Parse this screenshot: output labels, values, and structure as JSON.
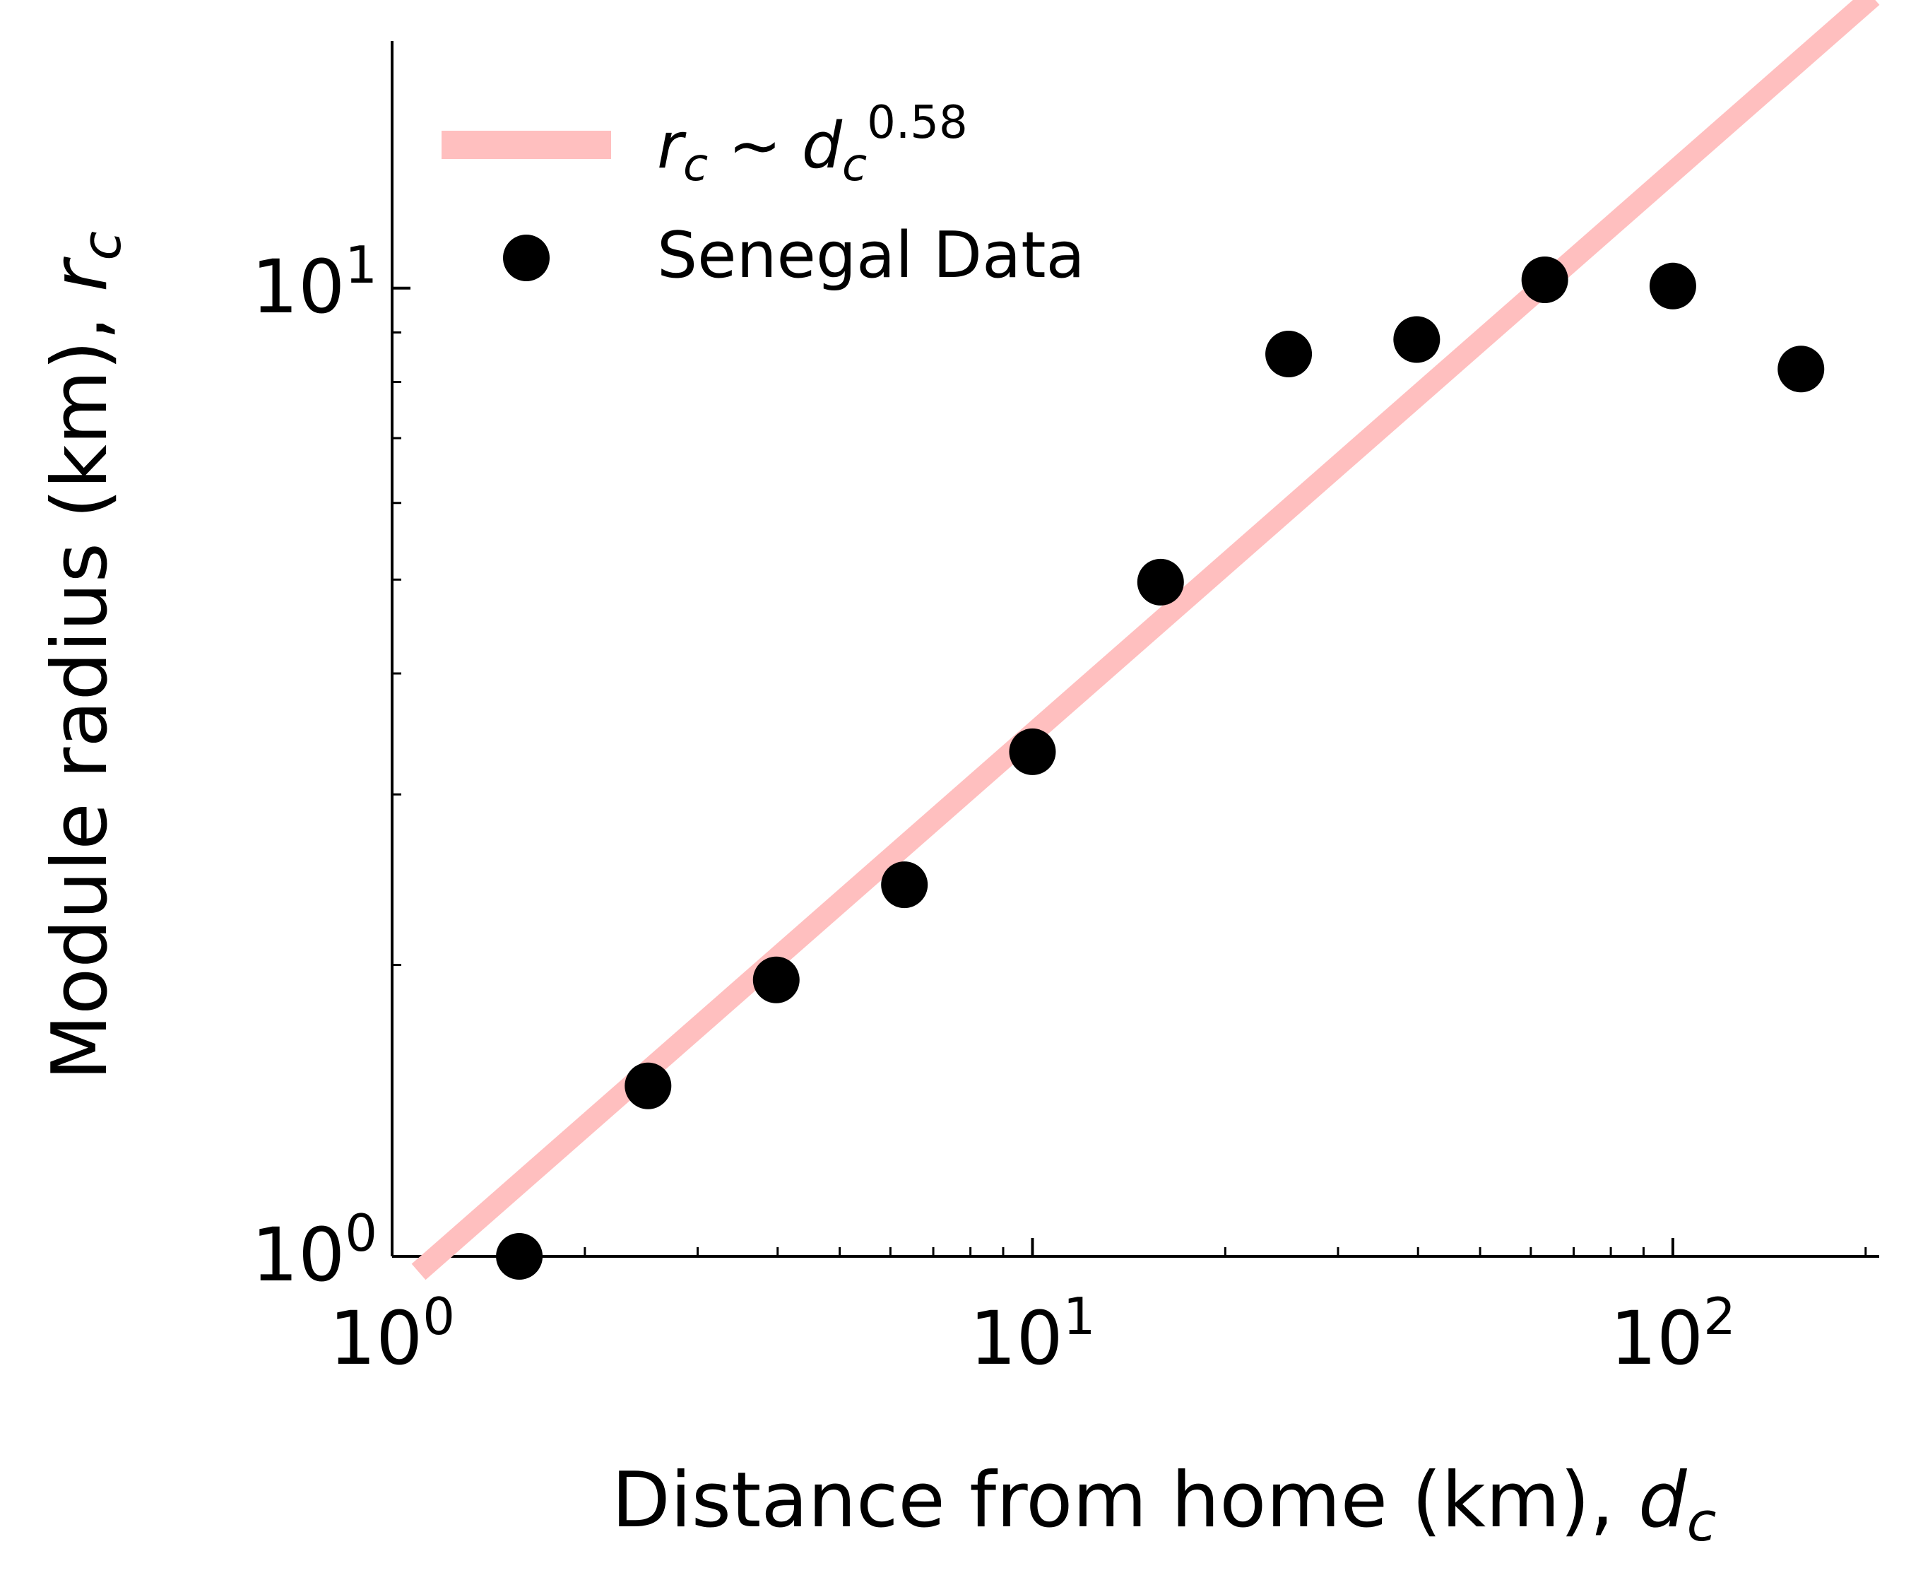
{
  "chart_data": {
    "type": "scatter",
    "xscale": "log",
    "yscale": "log",
    "xlim": [
      1,
      210
    ],
    "ylim": [
      1,
      18
    ],
    "xlabel": {
      "text": "Distance from home (km), ",
      "var": "d",
      "sub": "c"
    },
    "ylabel": {
      "text": "Module radius (km), ",
      "var": "r",
      "sub": "c"
    },
    "x_ticks": [
      {
        "value": 1,
        "base": "10",
        "exp": "0"
      },
      {
        "value": 10,
        "base": "10",
        "exp": "1"
      },
      {
        "value": 100,
        "base": "10",
        "exp": "2"
      }
    ],
    "y_ticks": [
      {
        "value": 1,
        "base": "10",
        "exp": "0"
      },
      {
        "value": 10,
        "base": "10",
        "exp": "1"
      }
    ],
    "grid": false,
    "legend_position": "top-left",
    "series": [
      {
        "name": "Senegal Data",
        "type": "scatter",
        "color": "#000000",
        "x": [
          1.58,
          2.51,
          3.98,
          6.31,
          10.0,
          15.85,
          25.12,
          39.81,
          63.1,
          100.0,
          158.5
        ],
        "y": [
          1.0,
          1.5,
          1.93,
          2.42,
          3.32,
          4.97,
          8.55,
          8.85,
          10.2,
          10.05,
          8.25
        ]
      },
      {
        "name": {
          "var": "r",
          "sub": "c",
          "mid": " ~ ",
          "var2": "d",
          "sub2": "c",
          "exp": "0.58"
        },
        "type": "line",
        "color": "#ffbfbf",
        "exponent": 0.58,
        "coefficient": 0.912,
        "x_range": [
          1.1,
          205
        ]
      }
    ]
  }
}
